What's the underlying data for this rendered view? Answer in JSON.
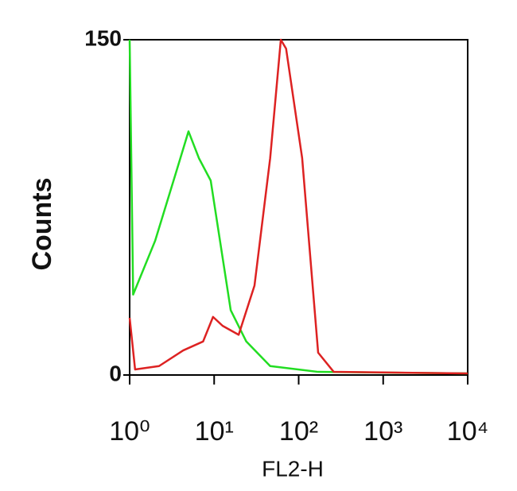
{
  "chart_data": {
    "type": "line",
    "xlabel": "FL2-H",
    "ylabel": "Counts",
    "xscale": "log",
    "xlim": [
      1,
      10000
    ],
    "xticks": [
      {
        "value": 1,
        "label": "10⁰"
      },
      {
        "value": 10,
        "label": "10¹"
      },
      {
        "value": 100,
        "label": "10²"
      },
      {
        "value": 1000,
        "label": "10³"
      },
      {
        "value": 10000,
        "label": "10⁴"
      }
    ],
    "ylim": [
      0,
      150
    ],
    "yticks": [
      0,
      150
    ],
    "series": [
      {
        "color": "#22dd22",
        "x": [
          1,
          1.1,
          2,
          3.5,
          4.97,
          6.6,
          9.1,
          15.7,
          24,
          46,
          170,
          10000
        ],
        "values": [
          150,
          36,
          60,
          90,
          109,
          97,
          87,
          29,
          15,
          4,
          1.4,
          0.7
        ]
      },
      {
        "color": "#dd2222",
        "x": [
          1,
          1.16,
          2.23,
          4.3,
          7.4,
          9.7,
          12.6,
          19.5,
          30,
          46,
          61.5,
          71,
          110,
          170,
          260,
          10000
        ],
        "values": [
          25.6,
          2.5,
          4,
          11,
          15,
          26,
          22,
          18,
          40,
          97,
          150,
          146,
          97,
          10,
          1.4,
          0.7
        ]
      }
    ]
  }
}
